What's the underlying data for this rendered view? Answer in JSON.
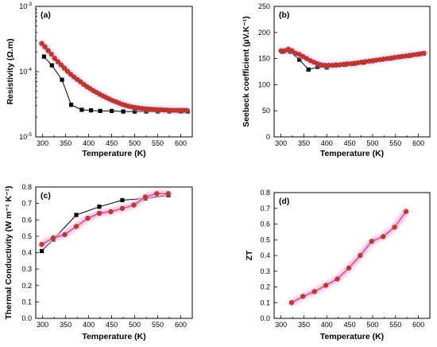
{
  "chart_data": [
    {
      "type": "line",
      "panel_label": "(a)",
      "xlabel": "Temperature (K)",
      "ylabel": "Resistivity (Ω.m)",
      "xlim": [
        285,
        625
      ],
      "ylim": [
        1e-05,
        0.001
      ],
      "yscale": "log",
      "xticks": [
        300,
        350,
        400,
        450,
        500,
        550,
        600
      ],
      "yticks": [
        1e-05,
        0.0001,
        0.001
      ],
      "ytick_labels": [
        {
          "base": "10",
          "exp": "-5"
        },
        {
          "base": "10",
          "exp": "-4"
        },
        {
          "base": "10",
          "exp": "-3"
        }
      ],
      "series": [
        {
          "marker": "square",
          "color": "#000000",
          "x": [
            303,
            320,
            342,
            362,
            385,
            405,
            425,
            450,
            475,
            500,
            525,
            550,
            575,
            600,
            615
          ],
          "y": [
            0.00017,
            0.000125,
            7.5e-05,
            3.1e-05,
            2.6e-05,
            2.55e-05,
            2.5e-05,
            2.5e-05,
            2.45e-05,
            2.45e-05,
            2.45e-05,
            2.45e-05,
            2.45e-05,
            2.45e-05,
            2.45e-05
          ]
        },
        {
          "marker": "circle",
          "color": "#c0392b",
          "glow": "#f2a6e6",
          "x": [
            298,
            305,
            312,
            319,
            326,
            333,
            340,
            347,
            354,
            361,
            368,
            375,
            382,
            389,
            396,
            403,
            410,
            417,
            424,
            431,
            438,
            445,
            452,
            459,
            466,
            473,
            480,
            487,
            494,
            501,
            508,
            515,
            522,
            529,
            536,
            543,
            550,
            557,
            564,
            571,
            578,
            585,
            592,
            599,
            606,
            613
          ],
          "y": [
            0.00027,
            0.00024,
            0.00021,
            0.000185,
            0.00016,
            0.000142,
            0.000127,
            0.000113,
            0.000101,
            9.1e-05,
            8.3e-05,
            7.6e-05,
            7e-05,
            6.4e-05,
            5.9e-05,
            5.5e-05,
            5.1e-05,
            4.8e-05,
            4.5e-05,
            4.25e-05,
            4e-05,
            3.8e-05,
            3.6e-05,
            3.45e-05,
            3.3e-05,
            3.15e-05,
            3.05e-05,
            2.95e-05,
            2.88e-05,
            2.82e-05,
            2.77e-05,
            2.73e-05,
            2.7e-05,
            2.67e-05,
            2.65e-05,
            2.63e-05,
            2.61e-05,
            2.6e-05,
            2.58e-05,
            2.57e-05,
            2.56e-05,
            2.55e-05,
            2.55e-05,
            2.55e-05,
            2.55e-05,
            2.55e-05
          ]
        }
      ]
    },
    {
      "type": "line",
      "panel_label": "(b)",
      "xlabel": "Temperature (K)",
      "ylabel": "Seebeck coefficient (µV.K⁻¹)",
      "xlim": [
        285,
        625
      ],
      "ylim": [
        0,
        250
      ],
      "xticks": [
        300,
        350,
        400,
        450,
        500,
        550,
        600
      ],
      "yticks": [
        0,
        50,
        100,
        150,
        200,
        250
      ],
      "series": [
        {
          "marker": "square",
          "color": "#000000",
          "x": [
            303,
            320,
            340,
            360,
            380,
            400,
            420,
            440,
            460,
            480,
            500,
            520,
            540,
            560,
            580,
            600,
            612
          ],
          "y": [
            163,
            163,
            148,
            129,
            134,
            133,
            137,
            138,
            140,
            142,
            145,
            148,
            150,
            153,
            155,
            158,
            160
          ]
        },
        {
          "marker": "circle",
          "color": "#c0392b",
          "glow": "#f2a6e6",
          "x": [
            300,
            308,
            316,
            324,
            332,
            340,
            348,
            356,
            364,
            372,
            380,
            388,
            396,
            404,
            412,
            420,
            428,
            436,
            444,
            452,
            460,
            468,
            476,
            484,
            492,
            500,
            508,
            516,
            524,
            532,
            540,
            548,
            556,
            564,
            572,
            580,
            588,
            596,
            604,
            612
          ],
          "y": [
            165,
            165,
            168,
            165,
            160,
            158,
            154,
            150,
            146,
            143,
            140,
            138,
            137,
            137,
            137,
            138,
            138,
            139,
            140,
            140,
            141,
            142,
            143,
            144,
            145,
            146,
            147,
            148,
            149,
            150,
            151,
            152,
            153,
            154,
            155,
            156,
            157,
            158,
            159,
            160
          ]
        }
      ]
    },
    {
      "type": "line",
      "panel_label": "(c)",
      "xlabel": "Temperature (K)",
      "ylabel": "Thermal Conductivity (W m⁻¹ K⁻¹)",
      "xlim": [
        285,
        625
      ],
      "ylim": [
        0,
        0.8
      ],
      "xticks": [
        300,
        350,
        400,
        450,
        500,
        550,
        600
      ],
      "yticks": [
        0.0,
        0.1,
        0.2,
        0.3,
        0.4,
        0.5,
        0.6,
        0.7,
        0.8
      ],
      "series": [
        {
          "marker": "square",
          "color": "#000000",
          "x": [
            298,
            323,
            373,
            423,
            473,
            523,
            573
          ],
          "y": [
            0.41,
            0.48,
            0.63,
            0.68,
            0.72,
            0.73,
            0.75
          ]
        },
        {
          "marker": "circle",
          "color": "#c0392b",
          "glow": "#f2a6e6",
          "x": [
            298,
            323,
            348,
            373,
            398,
            423,
            448,
            473,
            498,
            523,
            548,
            573
          ],
          "y": [
            0.45,
            0.49,
            0.51,
            0.56,
            0.61,
            0.64,
            0.65,
            0.67,
            0.69,
            0.74,
            0.76,
            0.76
          ]
        }
      ]
    },
    {
      "type": "line",
      "panel_label": "(d)",
      "xlabel": "Temperature (K)",
      "ylabel": "ZT",
      "xlim": [
        285,
        625
      ],
      "ylim": [
        0,
        0.8
      ],
      "xticks": [
        300,
        350,
        400,
        450,
        500,
        550,
        600
      ],
      "yticks": [
        0.0,
        0.1,
        0.2,
        0.3,
        0.4,
        0.5,
        0.6,
        0.7,
        0.8
      ],
      "series": [
        {
          "marker": "circle",
          "color": "#c0392b",
          "glow": "#f2a6e6",
          "x": [
            323,
            348,
            373,
            398,
            423,
            448,
            473,
            498,
            523,
            548,
            573
          ],
          "y": [
            0.1,
            0.14,
            0.17,
            0.21,
            0.25,
            0.32,
            0.4,
            0.49,
            0.52,
            0.58,
            0.68
          ]
        }
      ]
    }
  ]
}
